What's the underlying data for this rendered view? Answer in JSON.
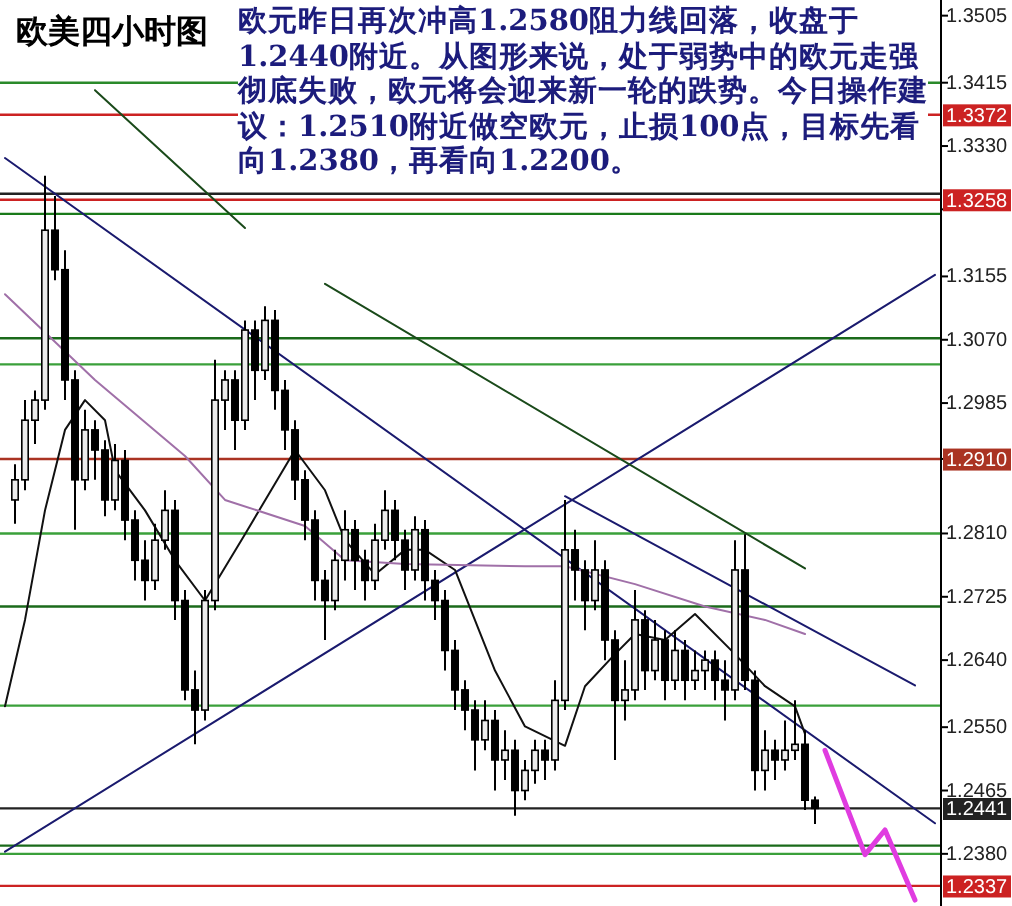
{
  "chart_data": {
    "type": "candlestick",
    "title": "欧美四小时图",
    "annotations": [
      "欧元昨日再次冲高1.2580阻力线回落，收盘于1.2440附近。从图形来说，处于弱势中的欧元走强彻底失败，欧元将会迎来新一轮的跌势。今日操作建议：1.2510附近做空欧元，止损100点，目标先看向1.2380，再看向1.2200。"
    ],
    "categories": [
      null,
      null,
      null,
      null,
      null,
      null,
      null,
      null,
      null,
      null,
      null,
      null,
      null,
      null,
      null,
      null,
      null,
      null,
      null,
      null,
      null,
      null,
      null,
      null,
      null,
      null,
      null,
      null,
      null,
      null,
      null,
      null,
      null,
      null,
      null,
      null,
      null,
      null,
      null,
      null,
      null,
      null,
      null,
      null,
      null,
      null,
      null,
      null,
      null,
      null,
      null,
      null,
      null,
      null,
      null,
      null,
      null,
      null,
      null,
      null,
      null,
      null,
      null,
      null,
      null,
      null,
      null,
      null,
      null,
      null,
      null,
      null,
      null,
      null,
      null,
      null,
      null,
      null,
      null,
      null,
      null,
      null,
      null,
      null,
      null,
      null,
      null,
      null,
      null,
      null,
      null,
      null,
      null,
      null
    ],
    "ohlc": [
      null,
      [
        1.2855,
        1.2903,
        1.2823,
        1.2882
      ],
      [
        1.2882,
        1.2989,
        1.2868,
        1.2962
      ],
      [
        1.2962,
        1.3002,
        1.293,
        1.2989
      ],
      [
        1.2989,
        1.329,
        1.2976,
        1.3217
      ],
      [
        1.3217,
        1.3263,
        1.315,
        1.3164
      ],
      [
        1.3164,
        1.319,
        1.2989,
        1.3016
      ],
      [
        1.3016,
        1.3029,
        1.2815,
        1.2882
      ],
      [
        1.2882,
        1.2976,
        1.2868,
        1.2949
      ],
      [
        1.2949,
        1.2962,
        1.2882,
        1.2922
      ],
      [
        1.2922,
        1.2935,
        1.2833,
        1.2855
      ],
      [
        1.2855,
        1.293,
        1.2841,
        1.2908
      ],
      [
        1.2908,
        1.2922,
        1.2801,
        1.2828
      ],
      [
        1.2828,
        1.2841,
        1.2747,
        1.2774
      ],
      [
        1.2774,
        1.2801,
        1.272,
        1.2747
      ],
      [
        1.2747,
        1.2823,
        1.2734,
        1.2801
      ],
      [
        1.2801,
        1.2868,
        1.2788,
        1.2841
      ],
      [
        1.2841,
        1.2855,
        1.2694,
        1.272
      ],
      [
        1.272,
        1.2734,
        1.2586,
        1.26
      ],
      [
        1.26,
        1.2626,
        1.2527,
        1.2573
      ],
      [
        1.2573,
        1.2734,
        1.2559,
        1.272
      ],
      [
        1.272,
        1.3043,
        1.2707,
        1.2989
      ],
      [
        1.2989,
        1.3029,
        1.2949,
        1.3016
      ],
      [
        1.3016,
        1.3029,
        1.2922,
        1.2962
      ],
      [
        1.2962,
        1.3096,
        1.2949,
        1.3083
      ],
      [
        1.3083,
        1.3096,
        1.2989,
        1.3029
      ],
      [
        1.3029,
        1.3115,
        1.3016,
        1.3096
      ],
      [
        1.3096,
        1.311,
        1.2976,
        1.3002
      ],
      [
        1.3002,
        1.3016,
        1.2922,
        1.2949
      ],
      [
        1.2949,
        1.2962,
        1.2855,
        1.2882
      ],
      [
        1.2882,
        1.2895,
        1.2801,
        1.2828
      ],
      [
        1.2828,
        1.2841,
        1.272,
        1.2747
      ],
      [
        1.2747,
        1.2761,
        1.2667,
        1.272
      ],
      [
        1.272,
        1.2788,
        1.2707,
        1.2774
      ],
      [
        1.2774,
        1.2841,
        1.2747,
        1.2815
      ],
      [
        1.2815,
        1.2828,
        1.2734,
        1.2774
      ],
      [
        1.2774,
        1.2788,
        1.272,
        1.2747
      ],
      [
        1.2747,
        1.2823,
        1.2734,
        1.2801
      ],
      [
        1.2801,
        1.2868,
        1.2788,
        1.2841
      ],
      [
        1.2841,
        1.2855,
        1.2774,
        1.2801
      ],
      [
        1.2801,
        1.2815,
        1.2734,
        1.2761
      ],
      [
        1.2761,
        1.2833,
        1.2747,
        1.2815
      ],
      [
        1.2815,
        1.2828,
        1.272,
        1.2747
      ],
      [
        1.2747,
        1.2761,
        1.2694,
        1.272
      ],
      [
        1.272,
        1.2734,
        1.2626,
        1.2653
      ],
      [
        1.2653,
        1.2667,
        1.2573,
        1.26
      ],
      [
        1.26,
        1.2613,
        1.2546,
        1.2573
      ],
      [
        1.2573,
        1.2586,
        1.2492,
        1.2533
      ],
      [
        1.2533,
        1.2586,
        1.2519,
        1.2559
      ],
      [
        1.2559,
        1.2573,
        1.2465,
        1.2506
      ],
      [
        1.2506,
        1.2546,
        1.2479,
        1.2519
      ],
      [
        1.2519,
        1.2533,
        1.2431,
        1.2465
      ],
      [
        1.2465,
        1.2506,
        1.2452,
        1.2492
      ],
      [
        1.2492,
        1.2533,
        1.2474,
        1.2519
      ],
      [
        1.2519,
        1.2533,
        1.2479,
        1.2506
      ],
      [
        1.2506,
        1.2613,
        1.2492,
        1.2586
      ],
      [
        1.2586,
        1.2855,
        1.2573,
        1.2788
      ],
      [
        1.2788,
        1.2815,
        1.272,
        1.2761
      ],
      [
        1.2761,
        1.2774,
        1.268,
        1.272
      ],
      [
        1.272,
        1.2801,
        1.2707,
        1.2761
      ],
      [
        1.2761,
        1.2774,
        1.264,
        1.2667
      ],
      [
        1.2667,
        1.268,
        1.2506,
        1.2586
      ],
      [
        1.2586,
        1.264,
        1.2559,
        1.26
      ],
      [
        1.26,
        1.2734,
        1.2586,
        1.2694
      ],
      [
        1.2694,
        1.2707,
        1.26,
        1.2626
      ],
      [
        1.2626,
        1.2694,
        1.2613,
        1.2667
      ],
      [
        1.2667,
        1.268,
        1.2586,
        1.2613
      ],
      [
        1.2613,
        1.268,
        1.26,
        1.2653
      ],
      [
        1.2653,
        1.2667,
        1.2586,
        1.2613
      ],
      [
        1.2613,
        1.2653,
        1.26,
        1.2626
      ],
      [
        1.2626,
        1.2653,
        1.26,
        1.264
      ],
      [
        1.264,
        1.2653,
        1.2586,
        1.2613
      ],
      [
        1.2613,
        1.264,
        1.2559,
        1.26
      ],
      [
        1.26,
        1.2801,
        1.2586,
        1.2761
      ],
      [
        1.2761,
        1.2809,
        1.26,
        1.2613
      ],
      [
        1.2613,
        1.2626,
        1.2465,
        1.2492
      ],
      [
        1.2492,
        1.2546,
        1.2465,
        1.2519
      ],
      [
        1.2519,
        1.2533,
        1.2479,
        1.2506
      ],
      [
        1.2506,
        1.2559,
        1.2492,
        1.2519
      ],
      [
        1.2519,
        1.2586,
        1.2506,
        1.2527
      ],
      [
        1.2527,
        1.2546,
        1.2439,
        1.2452
      ],
      [
        1.2452,
        1.2457,
        1.242,
        1.2441
      ],
      null,
      null,
      null,
      null,
      null,
      null,
      null,
      null,
      null,
      null,
      null,
      null
    ],
    "series": [
      {
        "type": "line",
        "color": "#1a1a6e",
        "values": [
          1.3314,
          null,
          null,
          null,
          null,
          null,
          null,
          null,
          null,
          null,
          null,
          null,
          null,
          null,
          null,
          null,
          null,
          null,
          null,
          null,
          null,
          null,
          null,
          null,
          null,
          null,
          null,
          null,
          null,
          null,
          null,
          null,
          null,
          null,
          null,
          null,
          null,
          null,
          null,
          null,
          null,
          null,
          null,
          null,
          null,
          null,
          null,
          null,
          null,
          null,
          null,
          null,
          null,
          null,
          null,
          null,
          null,
          null,
          null,
          null,
          null,
          null,
          null,
          null,
          null,
          null,
          null,
          null,
          null,
          null,
          null,
          null,
          null,
          null,
          null,
          null,
          null,
          null,
          null,
          null,
          null,
          null,
          null,
          null,
          null,
          null,
          null,
          null,
          null,
          null,
          null,
          null,
          null,
          1.2421
        ]
      },
      {
        "type": "line",
        "color": "#1a1a6e",
        "values": [
          1.2383,
          null,
          null,
          null,
          null,
          null,
          null,
          null,
          null,
          null,
          null,
          null,
          null,
          null,
          null,
          null,
          null,
          null,
          null,
          null,
          null,
          null,
          null,
          null,
          null,
          null,
          null,
          null,
          null,
          null,
          null,
          null,
          null,
          null,
          null,
          null,
          null,
          null,
          null,
          null,
          null,
          null,
          null,
          null,
          null,
          null,
          null,
          null,
          null,
          null,
          null,
          null,
          null,
          null,
          null,
          null,
          null,
          null,
          null,
          null,
          null,
          null,
          null,
          null,
          null,
          null,
          null,
          null,
          null,
          null,
          null,
          null,
          null,
          null,
          null,
          null,
          null,
          null,
          null,
          null,
          null,
          null,
          null,
          null,
          null,
          null,
          null,
          null,
          null,
          null,
          null,
          null,
          null,
          1.3157
        ]
      },
      {
        "type": "line",
        "color": "#1a4a1a",
        "values": [
          null,
          null,
          null,
          null,
          null,
          null,
          null,
          null,
          null,
          null,
          null,
          null,
          null,
          null,
          null,
          null,
          null,
          null,
          null,
          null,
          null,
          null,
          null,
          null,
          null,
          null,
          null,
          null,
          null,
          null,
          null,
          null,
          1.3145,
          null,
          null,
          null,
          null,
          null,
          null,
          null,
          null,
          null,
          null,
          null,
          null,
          null,
          null,
          null,
          null,
          null,
          null,
          null,
          null,
          null,
          null,
          null,
          null,
          null,
          null,
          null,
          null,
          null,
          null,
          null,
          null,
          null,
          null,
          null,
          null,
          null,
          null,
          null,
          null,
          null,
          null,
          null,
          null,
          null,
          null,
          null,
          1.2763,
          null,
          null,
          null,
          null,
          null,
          null,
          null,
          null,
          null,
          null,
          null,
          null,
          null
        ]
      },
      {
        "type": "line",
        "color": "#1a4a1a",
        "values": [
          null,
          null,
          null,
          null,
          null,
          null,
          null,
          null,
          null,
          1.3405,
          null,
          null,
          null,
          null,
          null,
          null,
          null,
          null,
          null,
          null,
          null,
          null,
          null,
          null,
          1.322,
          null,
          null,
          null,
          null,
          null,
          null,
          null,
          null,
          null,
          null,
          null,
          null,
          null,
          null,
          null,
          null,
          null,
          null,
          null,
          null,
          null,
          null,
          null,
          null,
          null,
          null,
          null,
          null,
          null,
          null,
          null,
          null,
          null,
          null,
          null,
          null,
          null,
          null,
          null,
          null,
          null,
          null,
          null,
          null,
          null,
          null,
          null,
          null,
          null,
          null,
          null,
          null,
          null,
          null,
          null,
          null,
          null,
          null,
          null,
          null,
          null,
          null,
          null,
          null,
          null,
          null,
          null,
          null,
          null
        ]
      },
      {
        "type": "line",
        "color": "#1a1a6e",
        "values": [
          null,
          null,
          null,
          null,
          null,
          null,
          null,
          null,
          null,
          null,
          null,
          null,
          null,
          null,
          null,
          null,
          null,
          null,
          null,
          null,
          null,
          null,
          null,
          null,
          null,
          null,
          null,
          null,
          null,
          null,
          null,
          null,
          null,
          null,
          null,
          null,
          null,
          null,
          null,
          null,
          null,
          null,
          null,
          null,
          null,
          null,
          null,
          null,
          null,
          null,
          null,
          null,
          null,
          null,
          null,
          null,
          1.286,
          null,
          null,
          null,
          null,
          null,
          null,
          null,
          null,
          null,
          null,
          null,
          null,
          null,
          null,
          null,
          null,
          null,
          null,
          null,
          null,
          null,
          null,
          null,
          null,
          null,
          null,
          null,
          null,
          null,
          null,
          null,
          null,
          null,
          null,
          1.2606,
          null,
          null
        ]
      },
      {
        "type": "line",
        "color": "#111111",
        "values": [
          1.2578,
          null,
          1.2694,
          null,
          1.2841,
          null,
          1.2949,
          null,
          1.2989,
          null,
          1.2962,
          1.2895,
          null,
          null,
          1.2841,
          null,
          null,
          1.2774,
          null,
          null,
          1.272,
          null,
          null,
          null,
          1.2809,
          null,
          null,
          null,
          null,
          1.2922,
          null,
          null,
          1.2868,
          null,
          1.2801,
          null,
          null,
          1.2755,
          null,
          null,
          1.2788,
          null,
          1.2788,
          null,
          null,
          1.2761,
          null,
          null,
          null,
          1.2626,
          null,
          null,
          1.2551,
          null,
          null,
          null,
          1.2525,
          null,
          1.2605,
          null,
          null,
          1.2648,
          null,
          1.2675,
          null,
          null,
          1.2667,
          null,
          null,
          1.2702,
          null,
          null,
          null,
          1.2648,
          null,
          null,
          1.2605,
          null,
          null,
          1.2578,
          1.2541,
          null,
          null,
          null,
          null,
          null,
          null,
          null,
          null,
          null,
          null,
          null,
          null,
          null
        ]
      },
      {
        "type": "line",
        "color": "#a070a8",
        "values": [
          1.3131,
          null,
          null,
          null,
          null,
          null,
          null,
          null,
          null,
          1.3016,
          null,
          null,
          null,
          null,
          null,
          null,
          null,
          null,
          1.2914,
          null,
          null,
          null,
          1.2855,
          null,
          null,
          null,
          null,
          null,
          null,
          null,
          1.282,
          null,
          null,
          null,
          1.2774,
          null,
          null,
          null,
          null,
          null,
          1.2769,
          null,
          null,
          null,
          null,
          null,
          null,
          null,
          null,
          null,
          null,
          null,
          1.2766,
          null,
          null,
          null,
          1.2766,
          null,
          null,
          null,
          null,
          null,
          null,
          1.2742,
          null,
          null,
          null,
          null,
          null,
          null,
          1.2712,
          null,
          null,
          null,
          null,
          null,
          1.2694,
          null,
          null,
          null,
          1.2675,
          null,
          null,
          null,
          null,
          null,
          null,
          null,
          null,
          null,
          null,
          null,
          null,
          null
        ]
      },
      {
        "type": "line",
        "color": "#e03ce0",
        "values": [
          null,
          null,
          null,
          null,
          null,
          null,
          null,
          null,
          null,
          null,
          null,
          null,
          null,
          null,
          null,
          null,
          null,
          null,
          null,
          null,
          null,
          null,
          null,
          null,
          null,
          null,
          null,
          null,
          null,
          null,
          null,
          null,
          null,
          null,
          null,
          null,
          null,
          null,
          null,
          null,
          null,
          null,
          null,
          null,
          null,
          null,
          null,
          null,
          null,
          null,
          null,
          null,
          null,
          null,
          null,
          null,
          null,
          null,
          null,
          null,
          null,
          null,
          null,
          null,
          null,
          null,
          null,
          null,
          null,
          null,
          null,
          null,
          null,
          null,
          null,
          null,
          null,
          null,
          null,
          null,
          null,
          null,
          1.2519,
          null,
          null,
          null,
          1.2379,
          null,
          1.2412,
          null,
          null,
          1.2318,
          null,
          null
        ]
      }
    ],
    "ref_lines": [
      {
        "axis": "y",
        "value": 1.3415,
        "color": "#2a8a2a"
      },
      {
        "axis": "y",
        "value": 1.3372,
        "color": "#cc2222",
        "label": "1.3372"
      },
      {
        "axis": "y",
        "value": 1.3266,
        "color": "#222222"
      },
      {
        "axis": "y",
        "value": 1.3258,
        "color": "#cc2222",
        "label": "1.3258"
      },
      {
        "axis": "y",
        "value": 1.3239,
        "color": "#1a7a1a"
      },
      {
        "axis": "y",
        "value": 1.3072,
        "color": "#1a6a1a"
      },
      {
        "axis": "y",
        "value": 1.3037,
        "color": "#3aa03a"
      },
      {
        "axis": "y",
        "value": 1.291,
        "color": "#aa3322",
        "label": "1.2910"
      },
      {
        "axis": "y",
        "value": 1.281,
        "color": "#3aa03a"
      },
      {
        "axis": "y",
        "value": 1.2712,
        "color": "#1a6a1a"
      },
      {
        "axis": "y",
        "value": 1.2579,
        "color": "#3aa03a"
      },
      {
        "axis": "y",
        "value": 1.2441,
        "color": "#222222",
        "label": "1.2441"
      },
      {
        "axis": "y",
        "value": 1.2391,
        "color": "#1a6a1a"
      },
      {
        "axis": "y",
        "value": 1.238,
        "color": "#3aa03a"
      },
      {
        "axis": "y",
        "value": 1.2337,
        "color": "#cc2222",
        "label": "1.2337"
      }
    ],
    "ylim": [
      1.231,
      1.3526
    ],
    "yticks": [
      {
        "value": 1.3505,
        "label": "1.3505"
      },
      {
        "value": 1.3415,
        "label": "1.3415"
      },
      {
        "value": 1.333,
        "label": "1.3330"
      },
      {
        "value": 1.3245,
        "label": null
      },
      {
        "value": 1.3155,
        "label": "1.3155"
      },
      {
        "value": 1.307,
        "label": "1.3070"
      },
      {
        "value": 1.2985,
        "label": "1.2985"
      },
      {
        "value": 1.291,
        "label": null
      },
      {
        "value": 1.281,
        "label": "1.2810"
      },
      {
        "value": 1.2725,
        "label": "1.2725"
      },
      {
        "value": 1.264,
        "label": "1.2640"
      },
      {
        "value": 1.255,
        "label": "1.2550"
      },
      {
        "value": 1.2465,
        "label": "1.2465"
      },
      {
        "value": 1.238,
        "label": "1.2380"
      }
    ],
    "tick_labels": "y"
  }
}
